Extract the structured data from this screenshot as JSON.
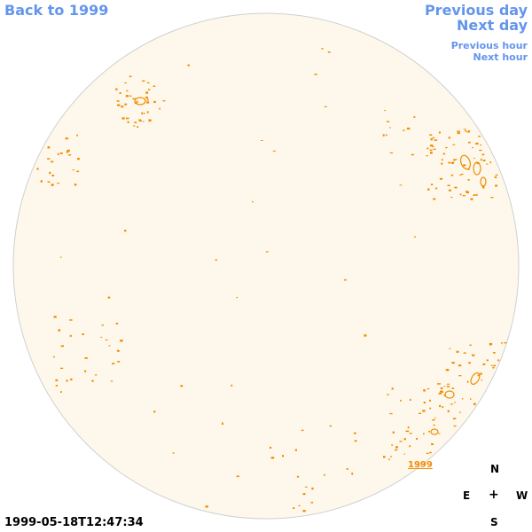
{
  "nav": {
    "back": "Back to 1999",
    "previous_day": "Previous day",
    "next_day": "Next day",
    "previous_hour": "Previous hour",
    "next_hour": "Next hour"
  },
  "timestamp": "1999-05-18T12:47:34",
  "sun_label": "1999",
  "compass": {
    "north": "N",
    "east": "E",
    "center": "+",
    "west": "W",
    "south": "S"
  },
  "colors": {
    "disk_fill": "#fdf8eb",
    "contour": "#f28c00",
    "link": "#6495ed"
  }
}
